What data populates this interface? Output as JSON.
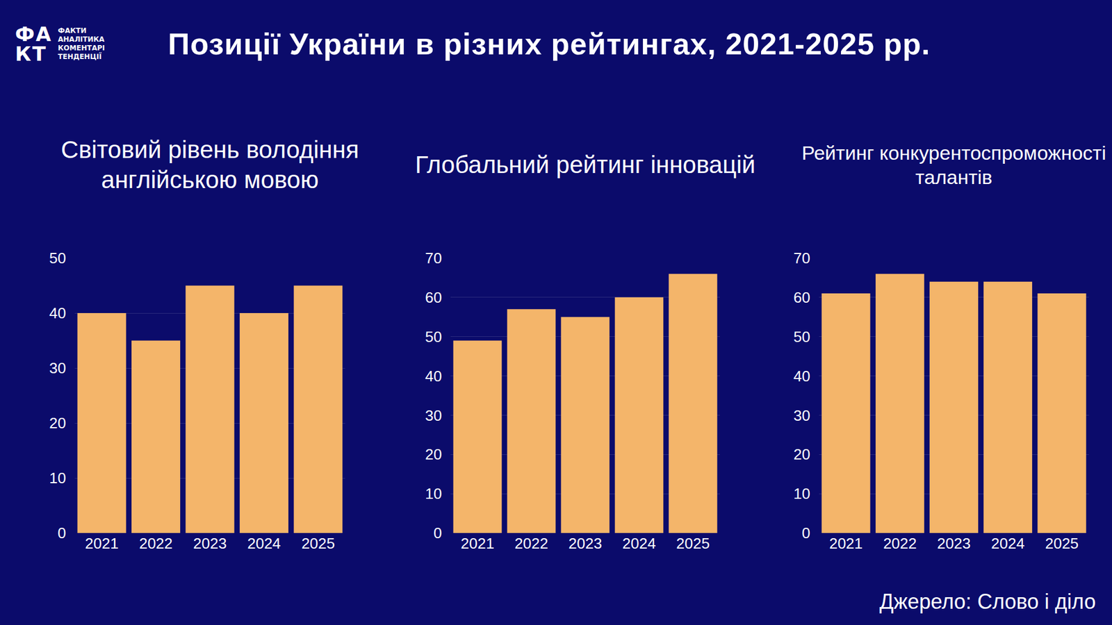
{
  "title": "Позиції України в різних рейтингах, 2021-2025 рр.",
  "logo": {
    "mark": "ФАКТ",
    "lines": [
      "ФАКТИ",
      "АНАЛІТИКА",
      "КОМЕНТАРІ",
      "ТЕНДЕНЦІЇ"
    ]
  },
  "source": "Джерело: Слово і діло",
  "chart_data": [
    {
      "type": "bar",
      "title": "Світовий рівень володіння англійською мовою",
      "categories": [
        "2021",
        "2022",
        "2023",
        "2024",
        "2025"
      ],
      "values": [
        40,
        35,
        45,
        40,
        45
      ],
      "color": "#f4b56a",
      "ylim": [
        0,
        50
      ],
      "yticks": [
        0,
        10,
        20,
        30,
        40,
        50
      ],
      "grid": true
    },
    {
      "type": "bar",
      "title": "Глобальний рейтинг інновацій",
      "categories": [
        "2021",
        "2022",
        "2023",
        "2024",
        "2025"
      ],
      "values": [
        49,
        57,
        55,
        60,
        66
      ],
      "color": "#f4b56a",
      "ylim": [
        0,
        70
      ],
      "yticks": [
        0,
        10,
        20,
        30,
        40,
        50,
        60,
        70
      ],
      "grid": true
    },
    {
      "type": "bar",
      "title": "Рейтинг конкурентоспроможності талантів",
      "categories": [
        "2021",
        "2022",
        "2023",
        "2024",
        "2025"
      ],
      "values": [
        61,
        66,
        64,
        64,
        61
      ],
      "color": "#f4b56a",
      "ylim": [
        0,
        70
      ],
      "yticks": [
        0,
        10,
        20,
        30,
        40,
        50,
        60,
        70
      ],
      "grid": true
    }
  ]
}
